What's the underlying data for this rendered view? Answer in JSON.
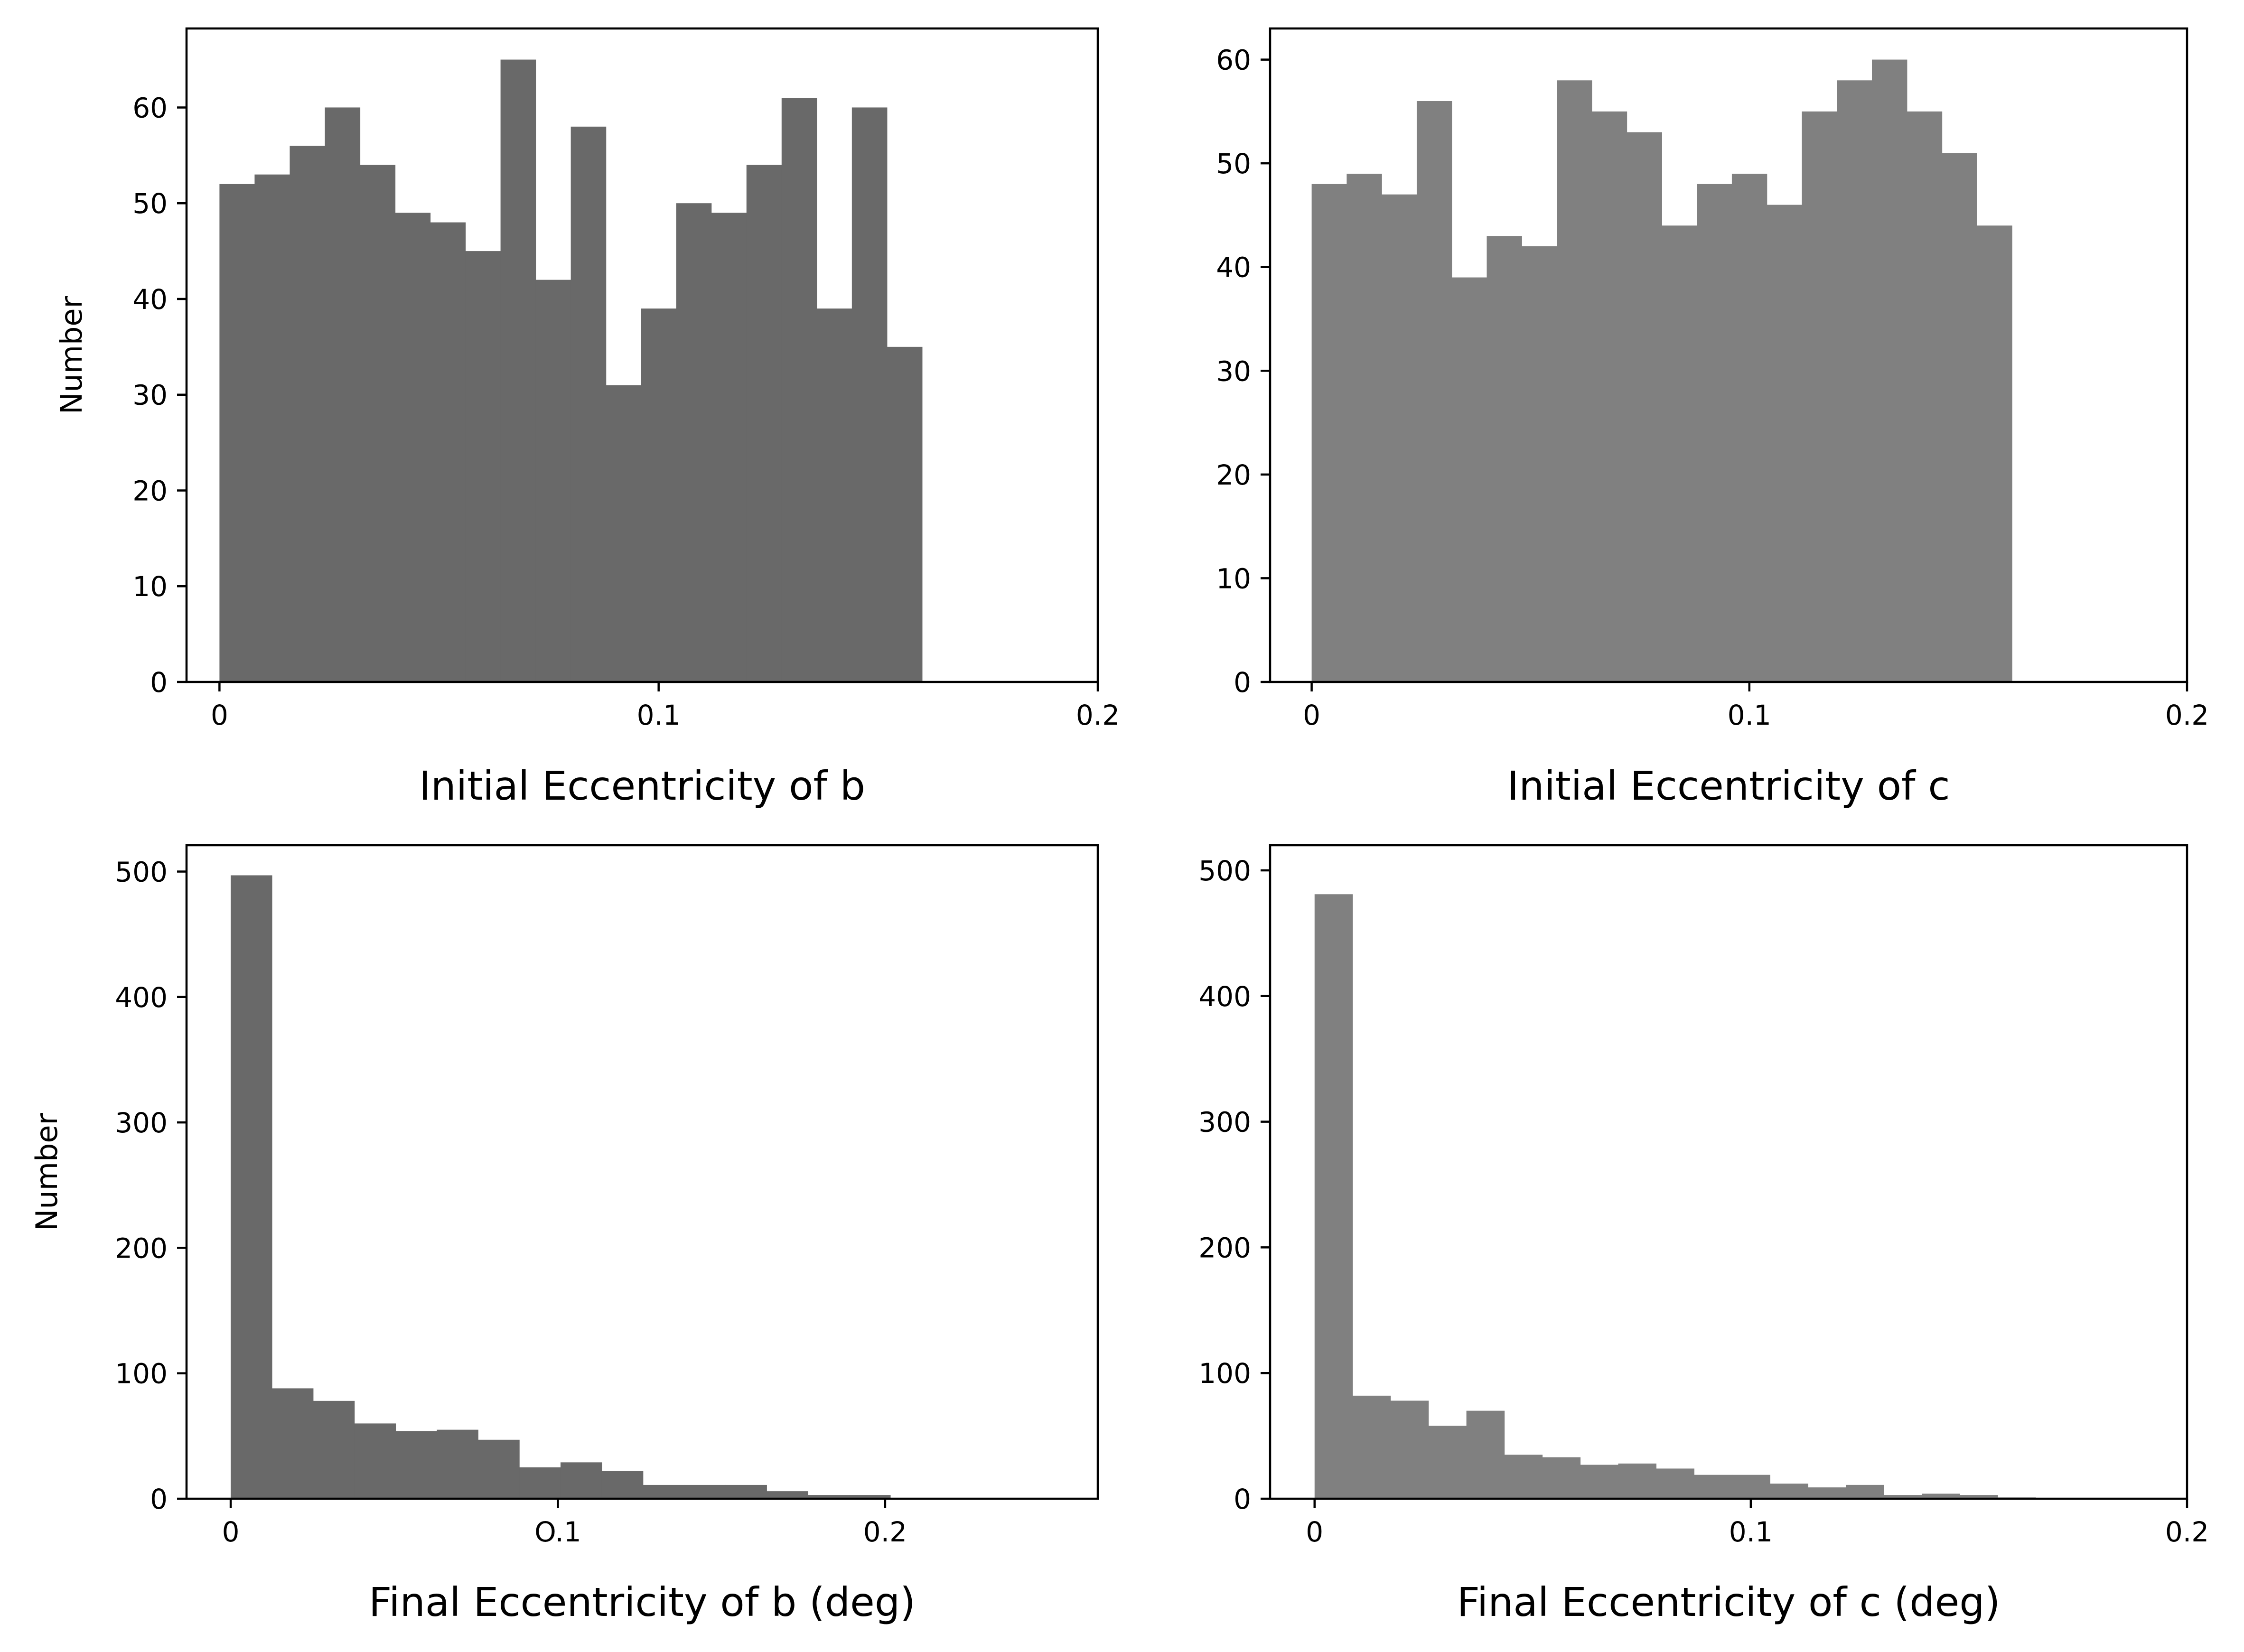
{
  "chart_data": [
    {
      "type": "bar",
      "panel": "top-left",
      "xlabel": "Initial Eccentricity of b",
      "ylabel": "Number",
      "xlim": [
        -0.0075,
        0.2
      ],
      "ylim": [
        0,
        68.25
      ],
      "xticks": [
        {
          "value": 0,
          "label": "0"
        },
        {
          "value": 0.1,
          "label": "0.1"
        },
        {
          "value": 0.2,
          "label": "0.2"
        }
      ],
      "yticks": [
        0,
        10,
        20,
        30,
        40,
        50,
        60
      ],
      "bin_start": 0,
      "bin_width": 0.008,
      "values": [
        52,
        53,
        56,
        60,
        54,
        49,
        48,
        45,
        65,
        42,
        58,
        31,
        39,
        50,
        49,
        54,
        61,
        39,
        60,
        35
      ],
      "color": "#696969"
    },
    {
      "type": "bar",
      "panel": "top-right",
      "xlabel": "Initial Eccentricity of c",
      "ylabel": "",
      "xlim": [
        -0.0095,
        0.2
      ],
      "ylim": [
        0,
        63
      ],
      "xticks": [
        {
          "value": 0,
          "label": "0"
        },
        {
          "value": 0.1,
          "label": "0.1"
        },
        {
          "value": 0.2,
          "label": "0.2"
        }
      ],
      "yticks": [
        0,
        10,
        20,
        30,
        40,
        50,
        60
      ],
      "bin_start": 0,
      "bin_width": 0.008,
      "values": [
        48,
        49,
        47,
        56,
        39,
        43,
        42,
        58,
        55,
        53,
        44,
        48,
        49,
        46,
        55,
        58,
        60,
        55,
        51,
        44
      ],
      "color": "#808080"
    },
    {
      "type": "bar",
      "panel": "bottom-left",
      "xlabel": "Final Eccentricity of b (deg)",
      "ylabel": "Number",
      "xlim": [
        -0.0135,
        0.265
      ],
      "ylim": [
        0,
        521
      ],
      "xticks": [
        {
          "value": 0,
          "label": "0"
        },
        {
          "value": 0.1,
          "label": "O.1"
        },
        {
          "value": 0.2,
          "label": "0.2"
        }
      ],
      "yticks": [
        0,
        100,
        200,
        300,
        400,
        500
      ],
      "bin_start": 0,
      "bin_width": 0.0126,
      "values": [
        497,
        88,
        78,
        60,
        54,
        55,
        47,
        25,
        29,
        22,
        11,
        11,
        11,
        6,
        3,
        3,
        0,
        0,
        0,
        0
      ],
      "color": "#696969"
    },
    {
      "type": "bar",
      "panel": "bottom-right",
      "xlabel": "Final Eccentricity of c (deg)",
      "ylabel": "",
      "xlim": [
        -0.0102,
        0.2
      ],
      "ylim": [
        0,
        520
      ],
      "xticks": [
        {
          "value": 0,
          "label": "0"
        },
        {
          "value": 0.1,
          "label": "0.1"
        },
        {
          "value": 0.2,
          "label": "0.2"
        }
      ],
      "yticks": [
        0,
        100,
        200,
        300,
        400,
        500
      ],
      "bin_start": 0,
      "bin_width": 0.0087,
      "values": [
        481,
        82,
        78,
        58,
        70,
        35,
        33,
        27,
        28,
        24,
        19,
        19,
        12,
        9,
        11,
        3,
        4,
        3,
        1,
        0
      ],
      "color": "#808080"
    }
  ]
}
